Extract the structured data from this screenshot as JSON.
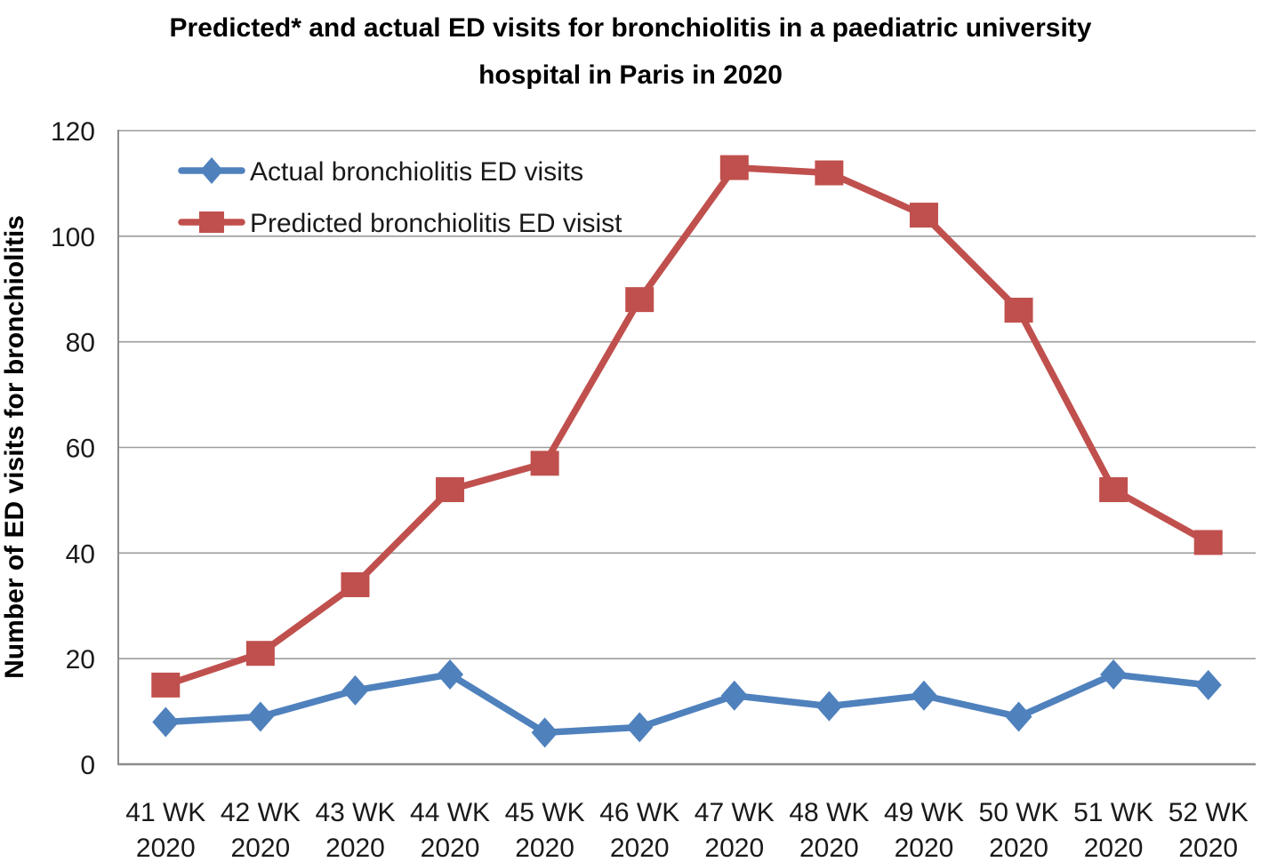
{
  "header": {
    "title_line1": "Predicted* and actual ED visits for bronchiolitis in a paediatric university",
    "title_line2": "hospital in Paris in 2020"
  },
  "chart_data": {
    "type": "line",
    "title": "Predicted* and actual ED visits for bronchiolitis in a paediatric university hospital in Paris in 2020",
    "xlabel": "",
    "ylabel": "Number of ED visits for bronchiolitis",
    "ylim": [
      0,
      120
    ],
    "ytick_step": 20,
    "grid": true,
    "legend_position": "top-left-inside",
    "categories": [
      "41 WK 2020",
      "42 WK 2020",
      "43 WK 2020",
      "44 WK 2020",
      "45 WK 2020",
      "46 WK 2020",
      "47 WK 2020",
      "48 WK 2020",
      "49 WK 2020",
      "50 WK 2020",
      "51 WK 2020",
      "52 WK 2020"
    ],
    "series": [
      {
        "name": "Actual bronchiolitis ED visits",
        "marker": "diamond",
        "color": "#4f81bd",
        "values": [
          8,
          9,
          14,
          17,
          6,
          7,
          13,
          11,
          13,
          9,
          17,
          15
        ]
      },
      {
        "name": "Predicted bronchiolitis ED visist",
        "marker": "square",
        "color": "#c0504d",
        "values": [
          15,
          21,
          34,
          52,
          57,
          88,
          113,
          112,
          104,
          86,
          52,
          42
        ]
      }
    ],
    "colors": {
      "gridline": "#9c9c9c",
      "axis": "#8c8c8c",
      "text": "#1a1a1a"
    }
  }
}
